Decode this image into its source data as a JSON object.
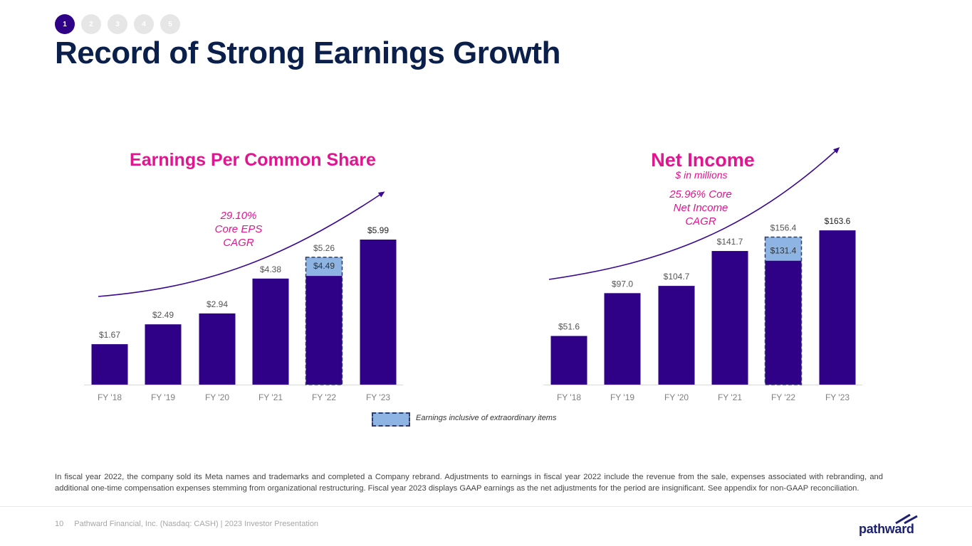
{
  "steps": [
    "1",
    "2",
    "3",
    "4",
    "5"
  ],
  "title": "Record of Strong Earnings Growth",
  "chart_data": [
    {
      "type": "bar",
      "title": "Earnings Per Common Share",
      "subtitle": "",
      "categories": [
        "FY '18",
        "FY '19",
        "FY '20",
        "FY '21",
        "FY '22",
        "FY '23"
      ],
      "values": [
        1.67,
        2.49,
        2.94,
        4.38,
        4.49,
        5.99
      ],
      "labels": [
        "$1.67",
        "$2.49",
        "$2.94",
        "$4.38",
        "$4.49",
        "$5.99"
      ],
      "extraordinary_index": 4,
      "extraordinary_total": 5.26,
      "extraordinary_label": "$5.26",
      "annotation": [
        "29.10%",
        "Core EPS",
        "CAGR"
      ],
      "ylim": [
        0,
        6.5
      ]
    },
    {
      "type": "bar",
      "title": "Net Income",
      "subtitle": "$ in millions",
      "categories": [
        "FY '18",
        "FY '19",
        "FY '20",
        "FY '21",
        "FY '22",
        "FY '23"
      ],
      "values": [
        51.6,
        97.0,
        104.7,
        141.7,
        131.4,
        163.6
      ],
      "labels": [
        "$51.6",
        "$97.0",
        "$104.7",
        "$141.7",
        "$131.4",
        "$163.6"
      ],
      "extraordinary_index": 4,
      "extraordinary_total": 156.4,
      "extraordinary_label": "$156.4",
      "annotation": [
        "25.96% Core",
        "Net Income",
        "CAGR"
      ],
      "ylim": [
        0,
        170
      ]
    }
  ],
  "legend": {
    "label": "Earnings inclusive of extraordinary items"
  },
  "footnote": "In fiscal year 2022, the company sold its Meta names and trademarks and completed a Company rebrand. Adjustments to earnings in fiscal year 2022 include the revenue from the sale, expenses associated with rebranding, and additional one-time compensation expenses stemming from organizational restructuring. Fiscal year 2023 displays GAAP earnings as the net adjustments for the period are insignificant. See appendix for non-GAAP reconciliation.",
  "footer": {
    "page": "10",
    "text": "Pathward Financial, Inc. (Nasdaq: CASH) | 2023 Investor Presentation"
  },
  "logo": {
    "text": "pathward"
  },
  "colors": {
    "bar": "#2e0187",
    "extraordinary": "#8db4e2",
    "accent": "#e0158f",
    "title": "#0b1f4b",
    "arrow": "#3b0a8f"
  }
}
